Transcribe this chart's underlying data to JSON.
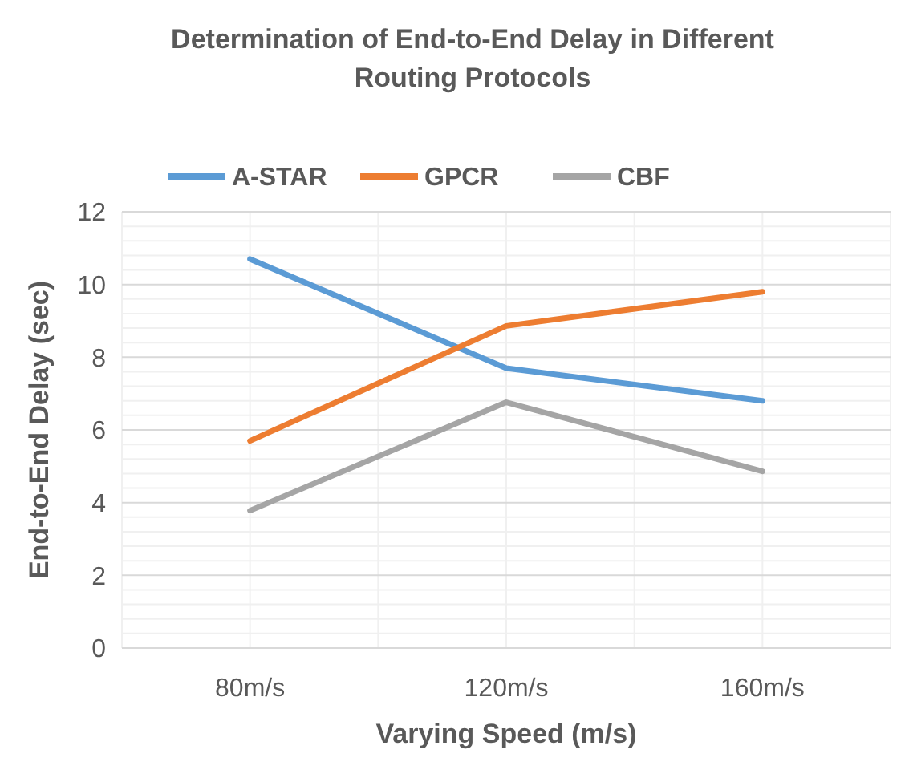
{
  "chart_data": {
    "type": "line",
    "title": "Determination of End-to-End Delay in Different Routing Protocols",
    "xlabel": "Varying Speed  (m/s)",
    "ylabel": "End-to-End Delay (sec)",
    "categories": [
      "80m/s",
      "120m/s",
      "160m/s"
    ],
    "series": [
      {
        "name": "A-STAR",
        "color": "#5b9bd5",
        "values": [
          10.7,
          7.7,
          6.8
        ]
      },
      {
        "name": "GPCR",
        "color": "#ed7d31",
        "values": [
          5.7,
          8.86,
          9.8
        ]
      },
      {
        "name": "CBF",
        "color": "#a5a5a5",
        "values": [
          3.78,
          6.76,
          4.86
        ]
      }
    ],
    "ylim": [
      0,
      12
    ],
    "yticks": [
      0,
      2,
      4,
      6,
      8,
      10,
      12
    ],
    "grid": true,
    "legend": "top",
    "marker": "none",
    "line_style": "solid"
  }
}
